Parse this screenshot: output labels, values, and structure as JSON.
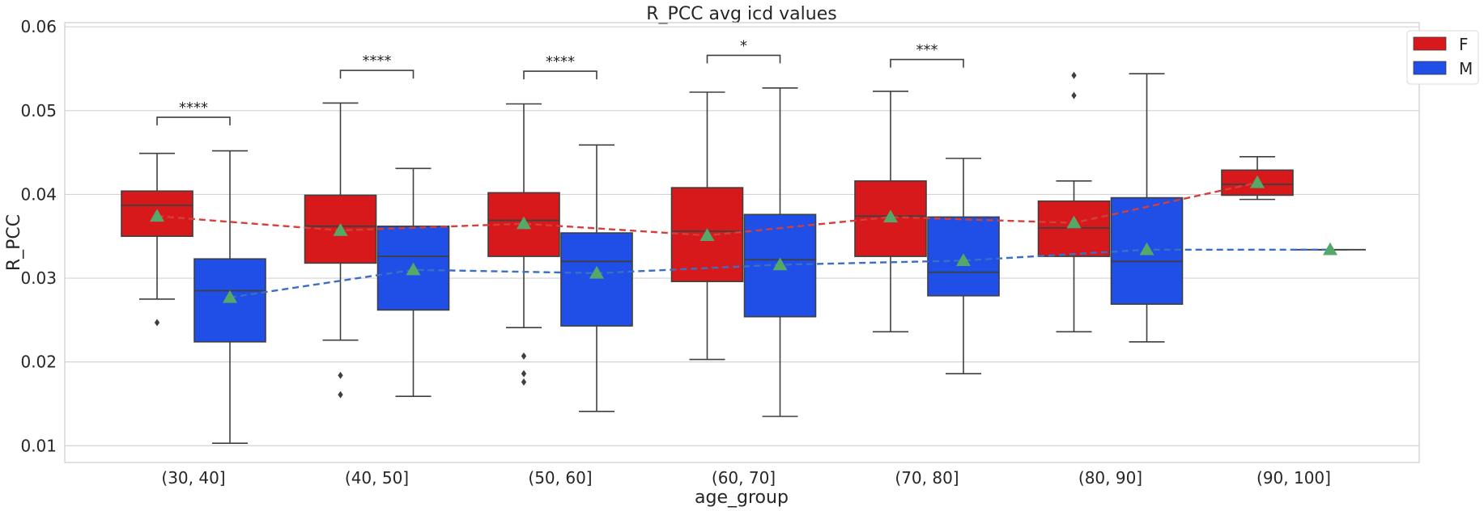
{
  "chart_data": {
    "type": "box",
    "title": "R_PCC avg icd values",
    "xlabel": "age_group",
    "ylabel": "R_PCC",
    "ylim": [
      0.008,
      0.0605
    ],
    "yticks": [
      0.01,
      0.02,
      0.03,
      0.04,
      0.05,
      0.06
    ],
    "ytick_labels": [
      "0.01",
      "0.02",
      "0.03",
      "0.04",
      "0.05",
      "0.06"
    ],
    "grid": true,
    "legend_position": "top-right",
    "categories": [
      "(30, 40]",
      "(40, 50]",
      "(50, 60]",
      "(60, 70]",
      "(70, 80]",
      "(80, 90]",
      "(90, 100]"
    ],
    "series": [
      {
        "name": "F",
        "color": "#d7191c",
        "mean_line_color": "#d43f3a",
        "boxes": [
          {
            "whisker_low": 0.0275,
            "q1": 0.035,
            "median": 0.0387,
            "q3": 0.0404,
            "whisker_high": 0.0449,
            "mean": 0.0374,
            "outliers": [
              0.0247
            ]
          },
          {
            "whisker_low": 0.0226,
            "q1": 0.0318,
            "median": 0.0362,
            "q3": 0.0399,
            "whisker_high": 0.0509,
            "mean": 0.0357,
            "outliers": [
              0.0184,
              0.0161
            ]
          },
          {
            "whisker_low": 0.0241,
            "q1": 0.0326,
            "median": 0.0369,
            "q3": 0.0402,
            "whisker_high": 0.0508,
            "mean": 0.0365,
            "outliers": [
              0.0207,
              0.0186,
              0.0176
            ]
          },
          {
            "whisker_low": 0.0203,
            "q1": 0.0296,
            "median": 0.0356,
            "q3": 0.0408,
            "whisker_high": 0.0522,
            "mean": 0.0351,
            "outliers": []
          },
          {
            "whisker_low": 0.0236,
            "q1": 0.0326,
            "median": 0.0374,
            "q3": 0.0416,
            "whisker_high": 0.0523,
            "mean": 0.0373,
            "outliers": []
          },
          {
            "whisker_low": 0.0236,
            "q1": 0.0326,
            "median": 0.036,
            "q3": 0.0392,
            "whisker_high": 0.0416,
            "mean": 0.0366,
            "outliers": [
              0.0542,
              0.0518
            ]
          },
          {
            "whisker_low": 0.0394,
            "q1": 0.0399,
            "median": 0.0412,
            "q3": 0.0429,
            "whisker_high": 0.0445,
            "mean": 0.0414,
            "outliers": []
          }
        ]
      },
      {
        "name": "M",
        "color": "#1f4fe6",
        "mean_line_color": "#3a6fc4",
        "boxes": [
          {
            "whisker_low": 0.0103,
            "q1": 0.0224,
            "median": 0.0285,
            "q3": 0.0323,
            "whisker_high": 0.0452,
            "mean": 0.0277,
            "outliers": []
          },
          {
            "whisker_low": 0.0159,
            "q1": 0.0262,
            "median": 0.0326,
            "q3": 0.0362,
            "whisker_high": 0.0431,
            "mean": 0.031,
            "outliers": []
          },
          {
            "whisker_low": 0.0141,
            "q1": 0.0243,
            "median": 0.032,
            "q3": 0.0354,
            "whisker_high": 0.0459,
            "mean": 0.0306,
            "outliers": []
          },
          {
            "whisker_low": 0.0135,
            "q1": 0.0254,
            "median": 0.0322,
            "q3": 0.0376,
            "whisker_high": 0.0527,
            "mean": 0.0316,
            "outliers": []
          },
          {
            "whisker_low": 0.0186,
            "q1": 0.0279,
            "median": 0.0307,
            "q3": 0.0373,
            "whisker_high": 0.0443,
            "mean": 0.0321,
            "outliers": []
          },
          {
            "whisker_low": 0.0224,
            "q1": 0.0269,
            "median": 0.032,
            "q3": 0.0396,
            "whisker_high": 0.0544,
            "mean": 0.0334,
            "outliers": []
          },
          {
            "whisker_low": 0.0334,
            "q1": 0.0334,
            "median": 0.0334,
            "q3": 0.0334,
            "whisker_high": 0.0334,
            "mean": 0.0334,
            "outliers": []
          }
        ]
      }
    ],
    "mean_marker_color": "#55a868",
    "significance": [
      {
        "category_index": 0,
        "label": "****",
        "y": 0.0492
      },
      {
        "category_index": 1,
        "label": "****",
        "y": 0.0548
      },
      {
        "category_index": 2,
        "label": "****",
        "y": 0.0547
      },
      {
        "category_index": 3,
        "label": "*",
        "y": 0.0566
      },
      {
        "category_index": 4,
        "label": "***",
        "y": 0.0561
      }
    ]
  }
}
